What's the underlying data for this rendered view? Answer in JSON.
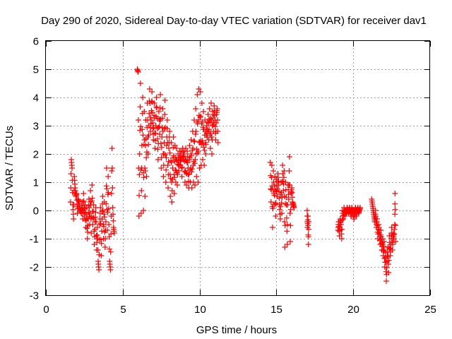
{
  "chart_data": {
    "type": "scatter",
    "title": "Day 290 of 2020, Sidereal Day-to-day VTEC variation (SDTVAR) for receiver dav1",
    "xlabel": "GPS time / hours",
    "ylabel": "SDTVAR / TECUs",
    "xlim": [
      0,
      25
    ],
    "ylim": [
      -3,
      6
    ],
    "x_ticks": [
      "0",
      "5",
      "10",
      "15",
      "20",
      "25"
    ],
    "y_ticks": [
      "-3",
      "-2",
      "-1",
      "0",
      "1",
      "2",
      "3",
      "4",
      "5",
      "6"
    ],
    "grid": true,
    "marker": "+",
    "color": "#ff0000",
    "series": [
      {
        "name": "dav1",
        "points": [
          [
            1.6,
            0.3
          ],
          [
            1.65,
            1.8
          ],
          [
            1.7,
            1.5
          ],
          [
            1.75,
            0.2
          ],
          [
            1.8,
            -0.3
          ],
          [
            1.85,
            1.2
          ],
          [
            1.9,
            0.8
          ],
          [
            1.95,
            0.5
          ],
          [
            2.0,
            0.6
          ],
          [
            2.05,
            -0.1
          ],
          [
            2.1,
            0.4
          ],
          [
            2.15,
            0.3
          ],
          [
            2.2,
            0.1
          ],
          [
            2.25,
            0.0
          ],
          [
            2.3,
            -0.1
          ],
          [
            2.35,
            0.3
          ],
          [
            2.4,
            -0.3
          ],
          [
            2.45,
            0.6
          ],
          [
            2.5,
            -0.2
          ],
          [
            2.55,
            0.2
          ],
          [
            2.6,
            -0.6
          ],
          [
            2.65,
            0.1
          ],
          [
            2.7,
            -1.0
          ],
          [
            2.75,
            -0.3
          ],
          [
            2.8,
            0.4
          ],
          [
            2.85,
            -0.5
          ],
          [
            2.9,
            0.7
          ],
          [
            2.95,
            -0.8
          ],
          [
            3.0,
            0.9
          ],
          [
            3.05,
            -0.5
          ],
          [
            3.1,
            0.2
          ],
          [
            3.15,
            -1.2
          ],
          [
            3.2,
            -0.4
          ],
          [
            3.25,
            0.1
          ],
          [
            3.3,
            -1.4
          ],
          [
            3.35,
            -0.6
          ],
          [
            3.4,
            -1.8
          ],
          [
            3.45,
            -2.1
          ],
          [
            3.5,
            -0.5
          ],
          [
            3.55,
            0.1
          ],
          [
            3.6,
            -1.6
          ],
          [
            3.65,
            -0.3
          ],
          [
            3.7,
            0.5
          ],
          [
            3.75,
            -1.0
          ],
          [
            3.8,
            0.3
          ],
          [
            3.85,
            -1.3
          ],
          [
            3.9,
            -0.4
          ],
          [
            3.95,
            1.5
          ],
          [
            4.0,
            -0.7
          ],
          [
            4.05,
            1.2
          ],
          [
            4.1,
            -0.5
          ],
          [
            4.15,
            -1.8
          ],
          [
            4.2,
            -2.1
          ],
          [
            4.25,
            -0.2
          ],
          [
            4.3,
            2.2
          ],
          [
            4.35,
            0.1
          ],
          [
            4.4,
            -0.6
          ],
          [
            4.45,
            -0.8
          ],
          [
            5.95,
            5.0
          ],
          [
            6.0,
            4.9
          ],
          [
            6.05,
            -0.2
          ],
          [
            6.1,
            2.0
          ],
          [
            6.15,
            4.5
          ],
          [
            6.2,
            -0.1
          ],
          [
            6.25,
            2.3
          ],
          [
            6.3,
            4.0
          ],
          [
            6.35,
            0.0
          ],
          [
            6.4,
            3.5
          ],
          [
            6.45,
            0.5
          ],
          [
            6.5,
            3.2
          ],
          [
            6.55,
            1.2
          ],
          [
            6.6,
            3.8
          ],
          [
            6.65,
            2.0
          ],
          [
            6.7,
            3.0
          ],
          [
            6.75,
            4.3
          ],
          [
            6.8,
            2.8
          ],
          [
            6.85,
            3.2
          ],
          [
            6.9,
            4.2
          ],
          [
            6.95,
            3.1
          ],
          [
            7.0,
            2.5
          ],
          [
            7.05,
            3.8
          ],
          [
            7.1,
            2.2
          ],
          [
            7.15,
            3.0
          ],
          [
            7.2,
            4.0
          ],
          [
            7.25,
            2.9
          ],
          [
            7.3,
            1.8
          ],
          [
            7.35,
            3.5
          ],
          [
            7.4,
            2.7
          ],
          [
            7.45,
            4.1
          ],
          [
            7.5,
            1.5
          ],
          [
            7.55,
            2.6
          ],
          [
            7.6,
            3.6
          ],
          [
            7.65,
            1.2
          ],
          [
            7.7,
            2.4
          ],
          [
            7.75,
            3.9
          ],
          [
            7.8,
            1.0
          ],
          [
            7.85,
            2.3
          ],
          [
            7.9,
            3.2
          ],
          [
            7.95,
            0.8
          ],
          [
            8.0,
            2.2
          ],
          [
            8.05,
            2.8
          ],
          [
            8.1,
            0.5
          ],
          [
            8.15,
            2.4
          ],
          [
            8.2,
            0.3
          ],
          [
            8.25,
            1.5
          ],
          [
            8.3,
            2.6
          ],
          [
            8.35,
            0.6
          ],
          [
            8.4,
            2.3
          ],
          [
            8.45,
            1.0
          ],
          [
            8.5,
            2.2
          ],
          [
            8.55,
            0.9
          ],
          [
            8.6,
            2.0
          ],
          [
            8.65,
            1.4
          ],
          [
            8.7,
            2.1
          ],
          [
            8.75,
            1.6
          ],
          [
            8.8,
            2.1
          ],
          [
            8.85,
            1.2
          ],
          [
            8.9,
            2.2
          ],
          [
            8.95,
            1.8
          ],
          [
            9.0,
            2.1
          ],
          [
            9.05,
            1.0
          ],
          [
            9.1,
            2.2
          ],
          [
            9.15,
            0.9
          ],
          [
            9.2,
            2.1
          ],
          [
            9.25,
            1.5
          ],
          [
            9.3,
            0.8
          ],
          [
            9.35,
            2.3
          ],
          [
            9.4,
            1.0
          ],
          [
            9.45,
            2.5
          ],
          [
            9.5,
            0.8
          ],
          [
            9.55,
            2.8
          ],
          [
            9.6,
            1.0
          ],
          [
            9.65,
            3.2
          ],
          [
            9.7,
            0.9
          ],
          [
            9.75,
            3.6
          ],
          [
            9.8,
            1.2
          ],
          [
            9.85,
            4.1
          ],
          [
            9.9,
            1.0
          ],
          [
            9.95,
            4.3
          ],
          [
            10.0,
            1.5
          ],
          [
            10.05,
            4.2
          ],
          [
            10.1,
            1.6
          ],
          [
            10.15,
            3.8
          ],
          [
            10.2,
            1.8
          ],
          [
            10.25,
            3.5
          ],
          [
            10.3,
            1.6
          ],
          [
            10.35,
            3.2
          ],
          [
            10.4,
            2.0
          ],
          [
            10.45,
            3.0
          ],
          [
            10.5,
            2.6
          ],
          [
            10.55,
            3.4
          ],
          [
            10.6,
            2.5
          ],
          [
            10.65,
            3.6
          ],
          [
            10.7,
            2.2
          ],
          [
            10.75,
            3.8
          ],
          [
            10.8,
            2.0
          ],
          [
            10.85,
            3.5
          ],
          [
            10.9,
            2.8
          ],
          [
            10.95,
            3.7
          ],
          [
            11.0,
            3.2
          ],
          [
            11.05,
            2.5
          ],
          [
            11.1,
            3.4
          ],
          [
            11.15,
            3.6
          ],
          [
            11.2,
            2.4
          ],
          [
            14.6,
            1.7
          ],
          [
            14.65,
            0.3
          ],
          [
            14.7,
            1.6
          ],
          [
            14.75,
            -0.6
          ],
          [
            14.8,
            1.4
          ],
          [
            14.85,
            0.2
          ],
          [
            14.9,
            1.2
          ],
          [
            14.95,
            -0.2
          ],
          [
            15.0,
            1.1
          ],
          [
            15.05,
            0.5
          ],
          [
            15.1,
            1.3
          ],
          [
            15.15,
            0.9
          ],
          [
            15.2,
            0.2
          ],
          [
            15.25,
            -0.3
          ],
          [
            15.3,
            1.0
          ],
          [
            15.35,
            -0.1
          ],
          [
            15.4,
            1.6
          ],
          [
            15.45,
            0.7
          ],
          [
            15.5,
            1.4
          ],
          [
            15.55,
            -1.3
          ],
          [
            15.6,
            1.0
          ],
          [
            15.65,
            0.2
          ],
          [
            15.7,
            -1.2
          ],
          [
            15.75,
            0.9
          ],
          [
            15.8,
            0.4
          ],
          [
            15.85,
            1.9
          ],
          [
            15.9,
            -1.1
          ],
          [
            15.95,
            0.6
          ],
          [
            16.0,
            0.8
          ],
          [
            16.05,
            0.3
          ],
          [
            16.1,
            0.2
          ],
          [
            16.15,
            0.1
          ],
          [
            17.0,
            0.0
          ],
          [
            17.02,
            -0.6
          ],
          [
            17.05,
            -0.2
          ],
          [
            17.08,
            -1.2
          ],
          [
            17.1,
            -0.4
          ],
          [
            19.0,
            -0.7
          ],
          [
            19.05,
            -0.4
          ],
          [
            19.1,
            -0.9
          ],
          [
            19.15,
            -0.3
          ],
          [
            19.2,
            -0.5
          ],
          [
            19.25,
            -1.0
          ],
          [
            19.3,
            0.0
          ],
          [
            19.35,
            -0.3
          ],
          [
            19.4,
            0.1
          ],
          [
            19.45,
            -0.2
          ],
          [
            19.5,
            0.0
          ],
          [
            19.55,
            -0.1
          ],
          [
            19.6,
            0.1
          ],
          [
            19.65,
            0.0
          ],
          [
            19.7,
            -0.1
          ],
          [
            19.75,
            0.1
          ],
          [
            19.8,
            0.0
          ],
          [
            19.85,
            -0.2
          ],
          [
            19.9,
            0.1
          ],
          [
            19.95,
            0.0
          ],
          [
            20.0,
            -0.1
          ],
          [
            20.05,
            -0.3
          ],
          [
            20.1,
            0.0
          ],
          [
            20.15,
            0.1
          ],
          [
            20.2,
            -0.2
          ],
          [
            20.25,
            0.0
          ],
          [
            20.3,
            0.1
          ],
          [
            20.35,
            -0.1
          ],
          [
            20.4,
            0.0
          ],
          [
            20.45,
            0.1
          ],
          [
            21.2,
            0.4
          ],
          [
            21.25,
            0.2
          ],
          [
            21.3,
            0.0
          ],
          [
            21.35,
            -0.2
          ],
          [
            21.4,
            -0.4
          ],
          [
            21.45,
            0.0
          ],
          [
            21.5,
            -0.6
          ],
          [
            21.55,
            -0.3
          ],
          [
            21.6,
            -1.0
          ],
          [
            21.65,
            -0.5
          ],
          [
            21.7,
            -0.8
          ],
          [
            21.75,
            -1.2
          ],
          [
            21.8,
            -0.7
          ],
          [
            21.85,
            -1.4
          ],
          [
            21.9,
            -1.0
          ],
          [
            21.95,
            -1.6
          ],
          [
            22.0,
            -1.1
          ],
          [
            22.05,
            -2.0
          ],
          [
            22.1,
            -1.5
          ],
          [
            22.15,
            -2.5
          ],
          [
            22.2,
            -1.8
          ],
          [
            22.25,
            -1.3
          ],
          [
            22.3,
            -2.2
          ],
          [
            22.35,
            -0.9
          ],
          [
            22.4,
            -1.6
          ],
          [
            22.45,
            -1.2
          ],
          [
            22.5,
            -0.6
          ],
          [
            22.55,
            -1.4
          ],
          [
            22.6,
            -0.8
          ],
          [
            22.65,
            -1.0
          ],
          [
            22.7,
            -0.5
          ],
          [
            22.72,
            0.6
          ],
          [
            22.75,
            -1.1
          ]
        ]
      }
    ]
  }
}
